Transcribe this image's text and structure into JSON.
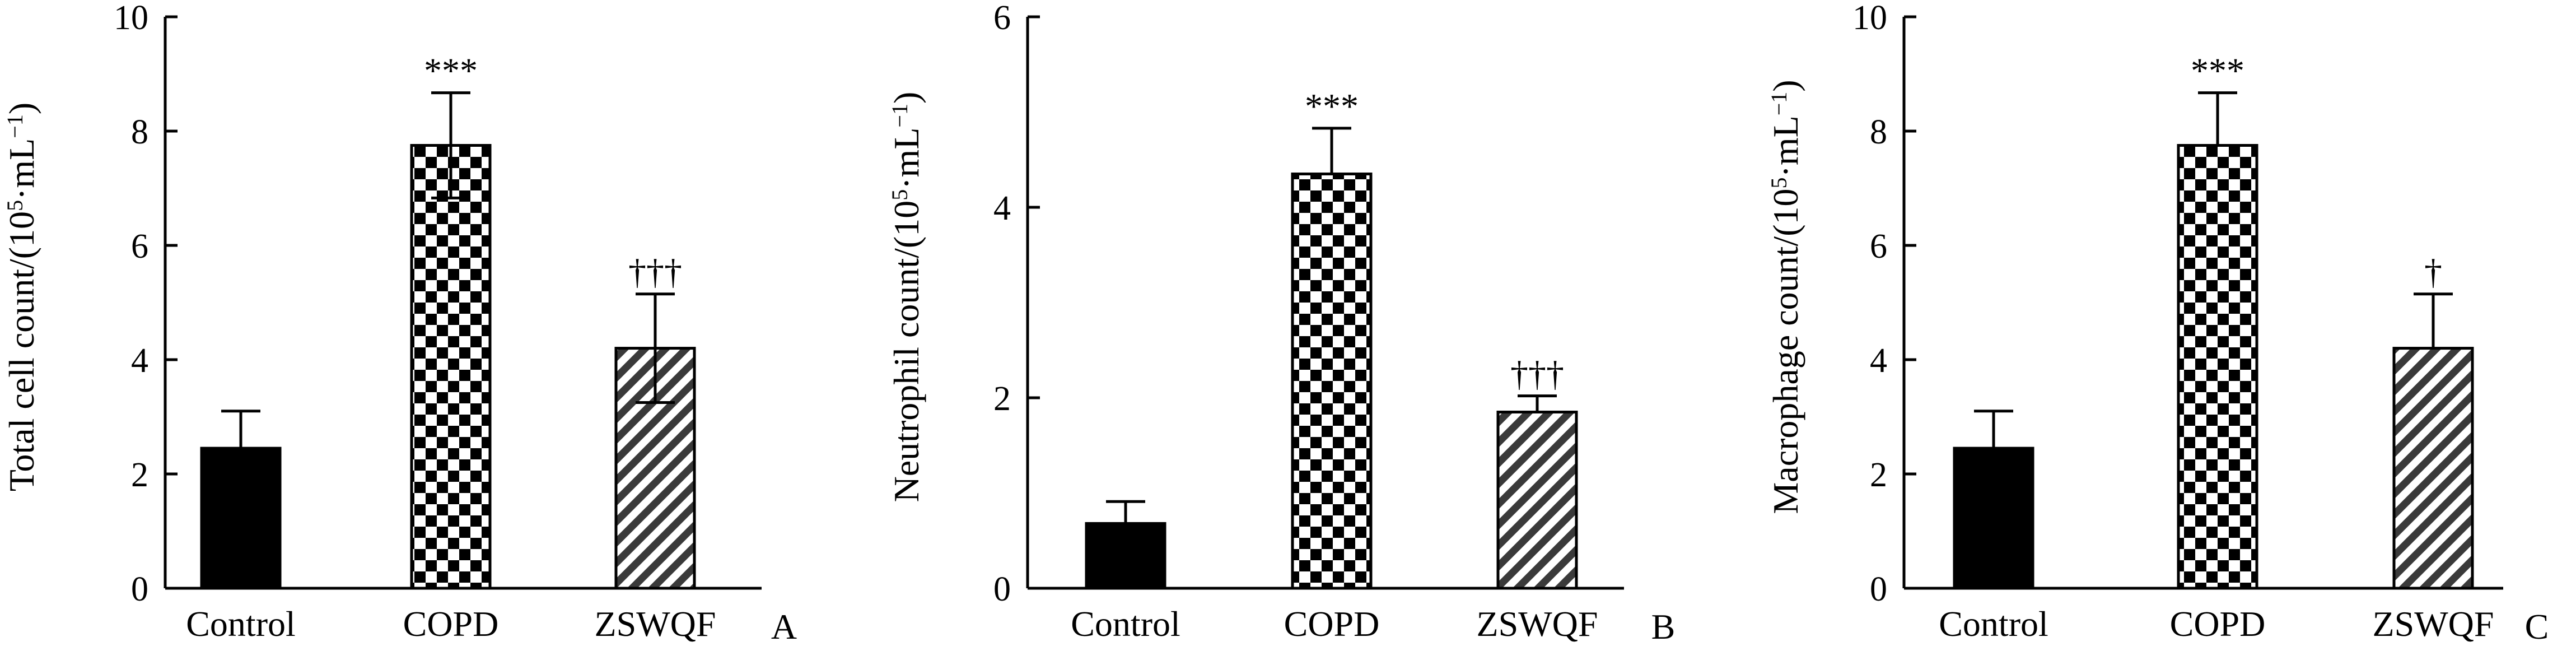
{
  "chart_data": [
    {
      "type": "bar",
      "panel_label": "A",
      "ylabel_main": "Total cell count/(10",
      "ylabel_sup1": "5",
      "ylabel_mid": "·mL",
      "ylabel_sup2": "−1",
      "ylabel_end": ")",
      "ylim": [
        0,
        10
      ],
      "yticks": [
        "0",
        "2",
        "4",
        "6",
        "8",
        "10"
      ],
      "categories": [
        "Control",
        "COPD",
        "ZSWQF"
      ],
      "values": [
        2.45,
        7.75,
        4.2
      ],
      "errors": [
        0.65,
        0.92,
        0.95
      ],
      "error_bottom": [
        false,
        true,
        true
      ],
      "significance": [
        "",
        "***",
        "†††"
      ],
      "fills": [
        "solid-black",
        "checkerboard",
        "diagonal-hatch"
      ]
    },
    {
      "type": "bar",
      "panel_label": "B",
      "ylabel_main": "Neutrophil count/(10",
      "ylabel_sup1": "5",
      "ylabel_mid": "·mL",
      "ylabel_sup2": "−1",
      "ylabel_end": ")",
      "ylim": [
        0,
        6
      ],
      "yticks": [
        "0",
        "2",
        "4",
        "6"
      ],
      "categories": [
        "Control",
        "COPD",
        "ZSWQF"
      ],
      "values": [
        0.68,
        4.35,
        1.85
      ],
      "errors": [
        0.23,
        0.48,
        0.17
      ],
      "error_bottom": [
        false,
        false,
        false
      ],
      "significance": [
        "",
        "***",
        "†††"
      ],
      "fills": [
        "solid-black",
        "checkerboard",
        "diagonal-hatch"
      ]
    },
    {
      "type": "bar",
      "panel_label": "C",
      "ylabel_main": "Macrophage count/(10",
      "ylabel_sup1": "5",
      "ylabel_mid": "·mL",
      "ylabel_sup2": "−1",
      "ylabel_end": ")",
      "ylim": [
        0,
        10
      ],
      "yticks": [
        "0",
        "2",
        "4",
        "6",
        "8",
        "10"
      ],
      "categories": [
        "Control",
        "COPD",
        "ZSWQF"
      ],
      "values": [
        2.45,
        7.75,
        4.2
      ],
      "errors": [
        0.65,
        0.92,
        0.95
      ],
      "error_bottom": [
        false,
        false,
        false
      ],
      "significance": [
        "",
        "***",
        "†"
      ],
      "fills": [
        "solid-black",
        "checkerboard",
        "diagonal-hatch"
      ]
    }
  ]
}
